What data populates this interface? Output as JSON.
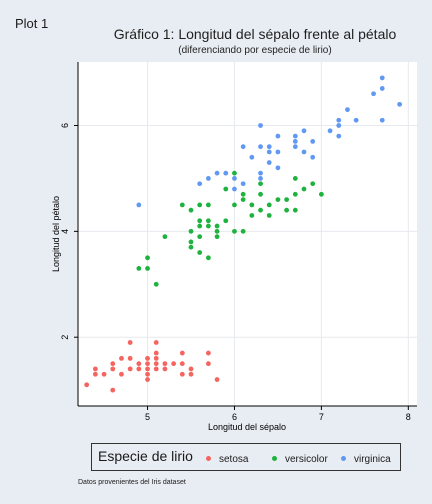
{
  "window": {
    "title": "Plot 1"
  },
  "chart_data": {
    "type": "scatter",
    "title": "Gráfico 1: Longitud del sépalo frente al pétalo",
    "subtitle": "(diferenciando por especie de lirio)",
    "xlabel": "Longitud del sépalo",
    "ylabel": "Longitud del pétalo",
    "xlim": [
      4.2,
      8.1
    ],
    "ylim": [
      0.7,
      7.2
    ],
    "xticks": [
      5,
      6,
      7,
      8
    ],
    "yticks": [
      2,
      4,
      6
    ],
    "grid": true,
    "legend": {
      "title": "Especie de lirio",
      "position": "bottom"
    },
    "note": "Datos provenientes del Iris dataset",
    "series": [
      {
        "name": "setosa",
        "color": "#f5645f",
        "points": [
          [
            4.3,
            1.1
          ],
          [
            4.4,
            1.4
          ],
          [
            4.4,
            1.3
          ],
          [
            4.5,
            1.3
          ],
          [
            4.6,
            1.4
          ],
          [
            4.6,
            1.5
          ],
          [
            4.6,
            1.0
          ],
          [
            4.7,
            1.3
          ],
          [
            4.7,
            1.6
          ],
          [
            4.8,
            1.6
          ],
          [
            4.8,
            1.9
          ],
          [
            4.8,
            1.4
          ],
          [
            4.9,
            1.4
          ],
          [
            4.9,
            1.5
          ],
          [
            5.0,
            1.4
          ],
          [
            5.0,
            1.5
          ],
          [
            5.0,
            1.6
          ],
          [
            5.0,
            1.3
          ],
          [
            5.0,
            1.2
          ],
          [
            5.1,
            1.4
          ],
          [
            5.1,
            1.5
          ],
          [
            5.1,
            1.7
          ],
          [
            5.1,
            1.9
          ],
          [
            5.1,
            1.6
          ],
          [
            5.2,
            1.5
          ],
          [
            5.2,
            1.4
          ],
          [
            5.3,
            1.5
          ],
          [
            5.4,
            1.7
          ],
          [
            5.4,
            1.5
          ],
          [
            5.4,
            1.3
          ],
          [
            5.5,
            1.4
          ],
          [
            5.5,
            1.3
          ],
          [
            5.7,
            1.7
          ],
          [
            5.7,
            1.5
          ],
          [
            5.8,
            1.2
          ]
        ]
      },
      {
        "name": "versicolor",
        "color": "#1db33e",
        "points": [
          [
            4.9,
            3.3
          ],
          [
            5.0,
            3.5
          ],
          [
            5.0,
            3.3
          ],
          [
            5.1,
            3.0
          ],
          [
            5.2,
            3.9
          ],
          [
            5.4,
            4.5
          ],
          [
            5.5,
            4.0
          ],
          [
            5.5,
            3.8
          ],
          [
            5.5,
            3.7
          ],
          [
            5.5,
            4.4
          ],
          [
            5.6,
            4.5
          ],
          [
            5.6,
            3.6
          ],
          [
            5.6,
            3.9
          ],
          [
            5.6,
            4.1
          ],
          [
            5.6,
            4.2
          ],
          [
            5.7,
            4.5
          ],
          [
            5.7,
            3.5
          ],
          [
            5.7,
            4.2
          ],
          [
            5.7,
            4.1
          ],
          [
            5.8,
            4.1
          ],
          [
            5.8,
            3.9
          ],
          [
            5.8,
            4.0
          ],
          [
            5.9,
            4.8
          ],
          [
            5.9,
            4.2
          ],
          [
            6.0,
            4.5
          ],
          [
            6.0,
            4.0
          ],
          [
            6.0,
            5.1
          ],
          [
            6.1,
            4.7
          ],
          [
            6.1,
            4.0
          ],
          [
            6.1,
            4.6
          ],
          [
            6.2,
            4.3
          ],
          [
            6.2,
            4.5
          ],
          [
            6.3,
            4.7
          ],
          [
            6.3,
            4.9
          ],
          [
            6.3,
            4.4
          ],
          [
            6.4,
            4.5
          ],
          [
            6.4,
            4.3
          ],
          [
            6.5,
            4.6
          ],
          [
            6.6,
            4.6
          ],
          [
            6.6,
            4.4
          ],
          [
            6.7,
            4.7
          ],
          [
            6.7,
            4.4
          ],
          [
            6.7,
            5.0
          ],
          [
            6.8,
            4.8
          ],
          [
            6.9,
            4.9
          ],
          [
            7.0,
            4.7
          ]
        ]
      },
      {
        "name": "virginica",
        "color": "#6199f2",
        "points": [
          [
            4.9,
            4.5
          ],
          [
            5.6,
            4.9
          ],
          [
            5.7,
            5.0
          ],
          [
            5.8,
            5.1
          ],
          [
            5.9,
            5.1
          ],
          [
            6.0,
            5.0
          ],
          [
            6.0,
            4.8
          ],
          [
            6.1,
            5.6
          ],
          [
            6.1,
            4.9
          ],
          [
            6.2,
            5.4
          ],
          [
            6.3,
            6.0
          ],
          [
            6.3,
            5.6
          ],
          [
            6.3,
            5.1
          ],
          [
            6.3,
            5.0
          ],
          [
            6.4,
            5.6
          ],
          [
            6.4,
            5.5
          ],
          [
            6.4,
            5.3
          ],
          [
            6.5,
            5.8
          ],
          [
            6.5,
            5.5
          ],
          [
            6.5,
            5.2
          ],
          [
            6.7,
            5.8
          ],
          [
            6.7,
            5.7
          ],
          [
            6.7,
            5.6
          ],
          [
            6.8,
            5.9
          ],
          [
            6.8,
            5.5
          ],
          [
            6.9,
            5.7
          ],
          [
            6.9,
            5.4
          ],
          [
            7.1,
            5.9
          ],
          [
            7.2,
            6.1
          ],
          [
            7.2,
            6.0
          ],
          [
            7.2,
            5.8
          ],
          [
            7.3,
            6.3
          ],
          [
            7.4,
            6.1
          ],
          [
            7.6,
            6.6
          ],
          [
            7.7,
            6.9
          ],
          [
            7.7,
            6.7
          ],
          [
            7.7,
            6.1
          ],
          [
            7.9,
            6.4
          ]
        ]
      }
    ]
  }
}
